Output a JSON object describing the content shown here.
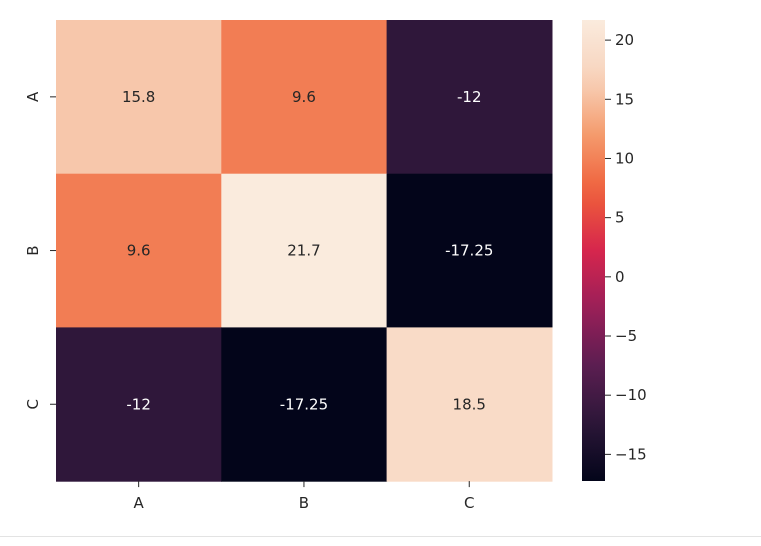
{
  "chart_data": {
    "type": "heatmap",
    "x_labels": [
      "A",
      "B",
      "C"
    ],
    "y_labels": [
      "A",
      "B",
      "C"
    ],
    "values": [
      [
        15.8,
        9.6,
        -12
      ],
      [
        9.6,
        21.7,
        -17.25
      ],
      [
        -12,
        -17.25,
        18.5
      ]
    ],
    "cell_labels": [
      [
        "15.8",
        "9.6",
        "-12"
      ],
      [
        "9.6",
        "21.7",
        "-17.25"
      ],
      [
        "-12",
        "-17.25",
        "18.5"
      ]
    ],
    "colorbar": {
      "min": -17.25,
      "max": 21.7,
      "ticks": [
        20,
        15,
        10,
        5,
        0,
        -5,
        -10,
        -15
      ],
      "tick_labels": [
        "20",
        "15",
        "10",
        "5",
        "0",
        "−5",
        "−10",
        "−15"
      ]
    },
    "colormap": "rocket",
    "colormap_stops": [
      "#03051a",
      "#2b1638",
      "#5b1e51",
      "#9a1f59",
      "#d6264d",
      "#ef5e3a",
      "#f49a6c",
      "#f8d3bc",
      "#faebdd"
    ]
  }
}
